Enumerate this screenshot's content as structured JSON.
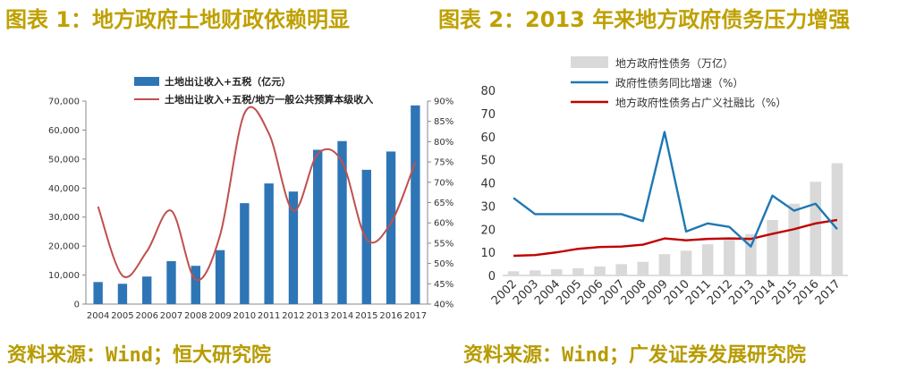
{
  "left": {
    "title": "图表 1：地方政府土地财政依赖明显",
    "source": "资料来源：Wind；恒大研究院"
  },
  "right": {
    "title": "图表 2：2013 年来地方政府债务压力增强",
    "source": "资料来源：Wind；广发证券发展研究院"
  },
  "colors": {
    "title": "#bfa000",
    "bar_blue": "#2e75b6",
    "line_red": "#c0504d",
    "bar_grey": "#d9d9d9",
    "line_blue": "#1f77b4",
    "line_darkred": "#c00000"
  },
  "chart_data": [
    {
      "type": "bar",
      "categories": [
        "2004",
        "2005",
        "2006",
        "2007",
        "2008",
        "2009",
        "2010",
        "2011",
        "2012",
        "2013",
        "2014",
        "2015",
        "2016",
        "2017"
      ],
      "series": [
        {
          "name": "土地出让收入+五税（亿元）",
          "axis": "left",
          "type": "bar",
          "values": [
            7600,
            7000,
            9500,
            14800,
            13200,
            18600,
            34800,
            41600,
            38800,
            53200,
            56200,
            46300,
            52600,
            68500
          ]
        },
        {
          "name": "土地出让收入+五税/地方一般公共预算本级收入",
          "axis": "right",
          "type": "line",
          "unit": "%",
          "values": [
            64,
            47,
            53,
            63,
            46,
            57,
            87,
            82,
            63,
            77,
            75,
            56,
            60,
            75
          ]
        }
      ],
      "left_axis": {
        "min": 0,
        "max": 70000,
        "step": 10000,
        "tick_labels": [
          "0",
          "10,000",
          "20,000",
          "30,000",
          "40,000",
          "50,000",
          "60,000",
          "70,000"
        ]
      },
      "right_axis": {
        "min": 40,
        "max": 90,
        "step": 5,
        "tick_labels": [
          "40%",
          "45%",
          "50%",
          "55%",
          "60%",
          "65%",
          "70%",
          "75%",
          "80%",
          "85%",
          "90%"
        ]
      },
      "legend": [
        "土地出让收入+五税（亿元）",
        "土地出让收入+五税/地方一般公共预算本级收入"
      ],
      "legend_position": "top"
    },
    {
      "type": "bar",
      "categories": [
        "2002",
        "2003",
        "2004",
        "2005",
        "2006",
        "2007",
        "2008",
        "2009",
        "2010",
        "2011",
        "2012",
        "2013",
        "2014",
        "2015",
        "2016",
        "2017"
      ],
      "series": [
        {
          "name": "地方政府性债务（万亿）",
          "type": "bar",
          "values": [
            1.8,
            2.2,
            2.7,
            3.1,
            3.9,
            4.9,
            5.9,
            9.2,
            10.7,
            13.5,
            15.9,
            17.9,
            24.0,
            31.0,
            40.5,
            48.5
          ]
        },
        {
          "name": "政府性债务同比增速（%）",
          "type": "line",
          "values": [
            33.5,
            26.5,
            26.5,
            26.5,
            26.5,
            26.5,
            23.5,
            62.0,
            19.0,
            22.5,
            21.0,
            12.5,
            34.5,
            28.0,
            31.0,
            20.0
          ]
        },
        {
          "name": "地方政府性债务占广义社融比（%）",
          "type": "line",
          "values": [
            8.5,
            8.8,
            10.0,
            11.5,
            12.3,
            12.5,
            13.3,
            16.0,
            15.2,
            15.8,
            16.0,
            15.8,
            18.0,
            20.0,
            22.5,
            24.0
          ]
        }
      ],
      "y_axis": {
        "min": 0,
        "max": 80,
        "step": 10,
        "tick_labels": [
          "0",
          "10",
          "20",
          "30",
          "40",
          "50",
          "60",
          "70",
          "80"
        ]
      },
      "legend": [
        "地方政府性债务（万亿）",
        "政府性债务同比增速（%）",
        "地方政府性债务占广义社融比（%）"
      ],
      "legend_position": "top"
    }
  ]
}
